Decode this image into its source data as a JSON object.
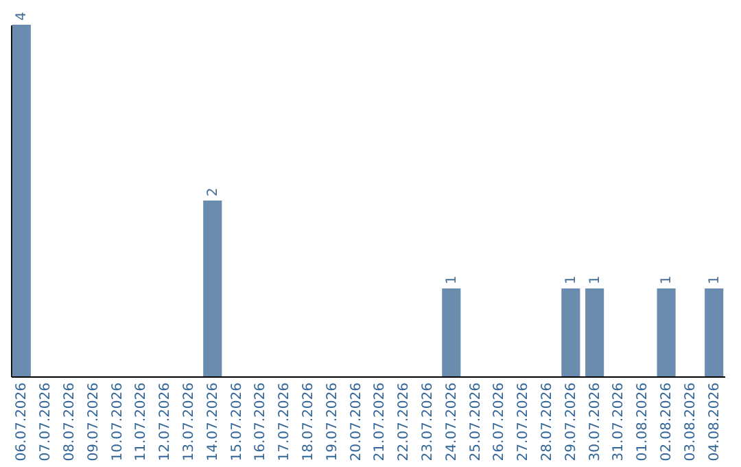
{
  "chart_data": {
    "type": "bar",
    "categories": [
      "06.07.2026",
      "07.07.2026",
      "08.07.2026",
      "09.07.2026",
      "10.07.2026",
      "11.07.2026",
      "12.07.2026",
      "13.07.2026",
      "14.07.2026",
      "15.07.2026",
      "16.07.2026",
      "17.07.2026",
      "18.07.2026",
      "19.07.2026",
      "20.07.2026",
      "21.07.2026",
      "22.07.2026",
      "23.07.2026",
      "24.07.2026",
      "25.07.2026",
      "26.07.2026",
      "27.07.2026",
      "28.07.2026",
      "29.07.2026",
      "30.07.2026",
      "31.07.2026",
      "01.08.2026",
      "02.08.2026",
      "03.08.2026",
      "04.08.2026"
    ],
    "values": [
      4,
      0,
      0,
      0,
      0,
      0,
      0,
      0,
      2,
      0,
      0,
      0,
      0,
      0,
      0,
      0,
      0,
      0,
      1,
      0,
      0,
      0,
      0,
      1,
      1,
      0,
      0,
      1,
      0,
      1
    ],
    "value_labels": [
      "4",
      null,
      null,
      null,
      null,
      null,
      null,
      null,
      "2",
      null,
      null,
      null,
      null,
      null,
      null,
      null,
      null,
      null,
      "1",
      null,
      null,
      null,
      null,
      "1",
      "1",
      null,
      null,
      "1",
      null,
      "1"
    ],
    "color": "#6a8caf",
    "grid": false
  }
}
